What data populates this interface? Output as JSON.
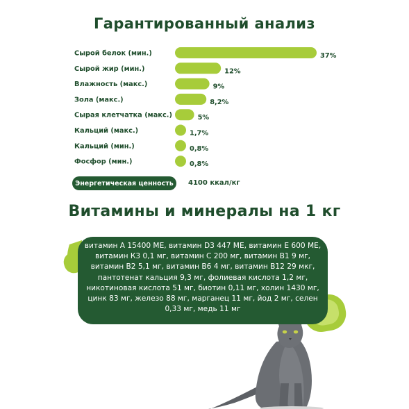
{
  "analysis": {
    "title": "Гарантированный анализ",
    "energy_label": "Энергетическая ценность",
    "energy_value": "4100 ккал/кг"
  },
  "chart_data": {
    "type": "bar",
    "orientation": "horizontal",
    "title": "Гарантированный анализ",
    "categories": [
      "Сырой белок (мин.)",
      "Сырой жир (мин.)",
      "Влажность (макс.)",
      "Зола (макс.)",
      "Сырая клетчатка (макс.)",
      "Кальций (макс.)",
      "Кальций (мин.)",
      "Фосфор (мин.)"
    ],
    "values": [
      37,
      12,
      9,
      8.2,
      5,
      1.7,
      0.8,
      0.8
    ],
    "value_labels": [
      "37%",
      "12%",
      "9%",
      "8,2%",
      "5%",
      "1,7%",
      "0,8%",
      "0,8%"
    ],
    "xlim": [
      0,
      37
    ],
    "grid": false,
    "bar_color": "#a7cc3a"
  },
  "vitamins": {
    "title": "Витамины и минералы на 1 кг",
    "lines": [
      "витамин А 15400 МЕ, витамин D3 447 МЕ, витамин Е 600 МЕ,",
      "витамин К3 0,1 мг, витамин С 200 мг, витамин В1 9 мг,",
      "витамин В2 5,1 мг, витамин В6 4 мг, витамин В12 29 мкг,",
      "пантотенат кальция 9,3 мг, фолиевая кислота 1,2 мг,",
      "никотиновая кислота 51 мг, биотин 0,11 мг, холин 1430 мг,",
      "цинк 83 мг, железо 88 мг, марганец 11 мг, йод 2 мг, селен",
      "0,33 мг, медь 11 мг"
    ]
  },
  "colors": {
    "dark_green": "#245a32",
    "lime": "#a7cc3a",
    "text_green": "#1f4d2c"
  }
}
